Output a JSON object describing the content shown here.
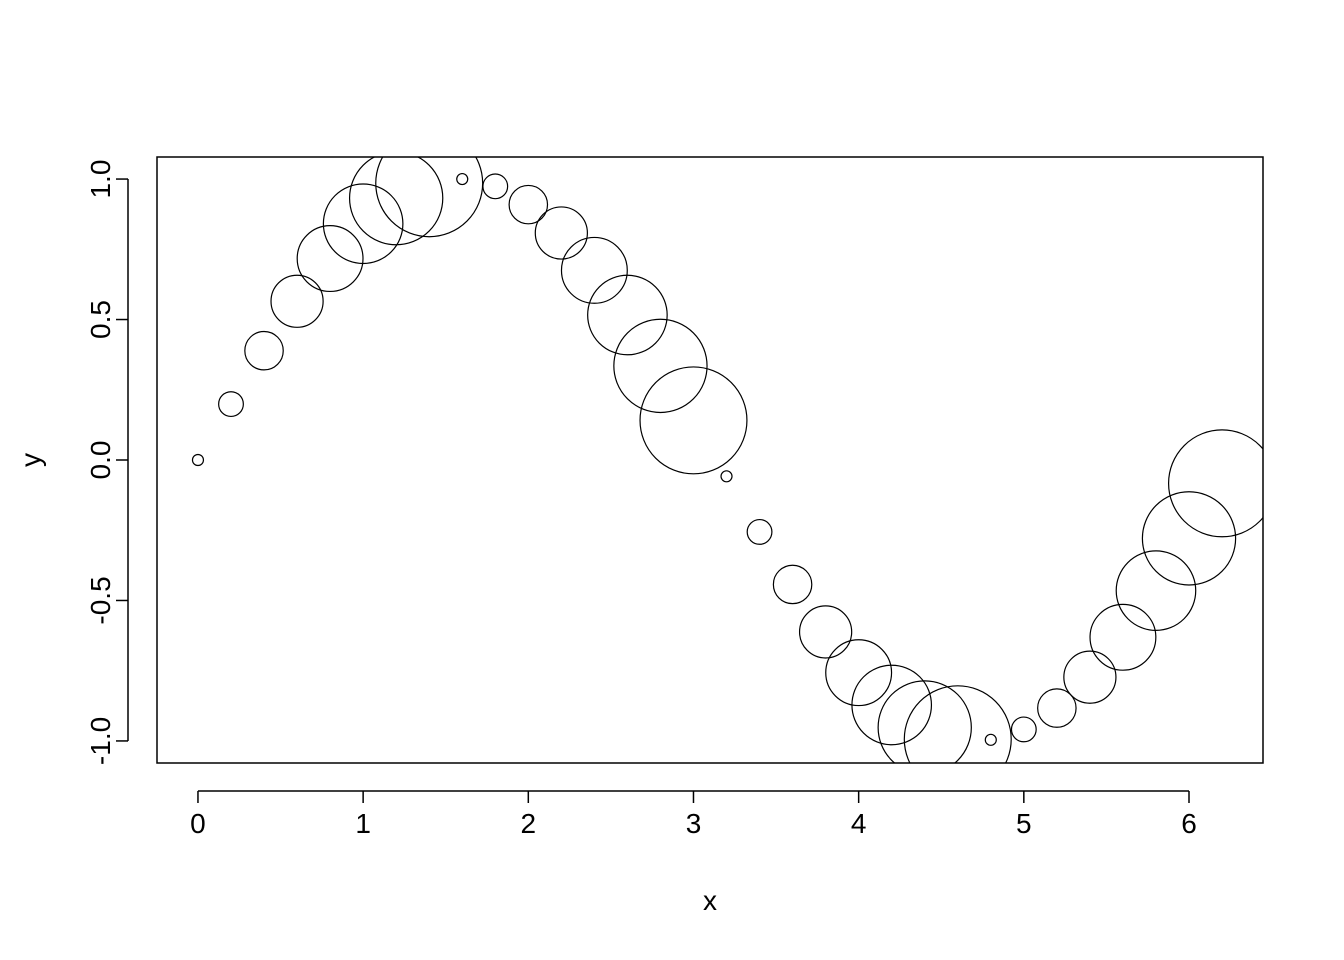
{
  "chart_data": {
    "type": "scatter",
    "title": "",
    "xlabel": "x",
    "ylabel": "y",
    "xlim": [
      -0.248,
      6.448
    ],
    "ylim": [
      -1.0785,
      1.0785
    ],
    "xticks": [
      0,
      1,
      2,
      3,
      4,
      5,
      6
    ],
    "xtick_labels": [
      "0",
      "1",
      "2",
      "3",
      "4",
      "5",
      "6"
    ],
    "yticks": [
      -1.0,
      -0.5,
      0.0,
      0.5,
      1.0
    ],
    "ytick_labels": [
      "-1.0",
      "-0.5",
      "0.0",
      "0.5",
      "1.0"
    ],
    "grid": false,
    "legend": "none",
    "marker": "open-circle",
    "size_cycle": [
      1,
      2,
      3,
      4,
      5,
      6,
      7,
      8
    ],
    "x": [
      0,
      0.2,
      0.4,
      0.6,
      0.8,
      1.0,
      1.2,
      1.4,
      1.6,
      1.8,
      2.0,
      2.2,
      2.4,
      2.6,
      2.8,
      3.0,
      3.2,
      3.4,
      3.6,
      3.8,
      4.0,
      4.2,
      4.4,
      4.6,
      4.8,
      5.0,
      5.2,
      5.4,
      5.6,
      5.8,
      6.0,
      6.2
    ],
    "y": [
      0.0,
      0.199,
      0.389,
      0.565,
      0.717,
      0.841,
      0.932,
      0.985,
      1.0,
      0.974,
      0.909,
      0.808,
      0.675,
      0.516,
      0.335,
      0.141,
      -0.058,
      -0.256,
      -0.443,
      -0.612,
      -0.757,
      -0.872,
      -0.952,
      -0.994,
      -0.996,
      -0.959,
      -0.883,
      -0.773,
      -0.631,
      -0.465,
      -0.279,
      -0.083
    ]
  }
}
